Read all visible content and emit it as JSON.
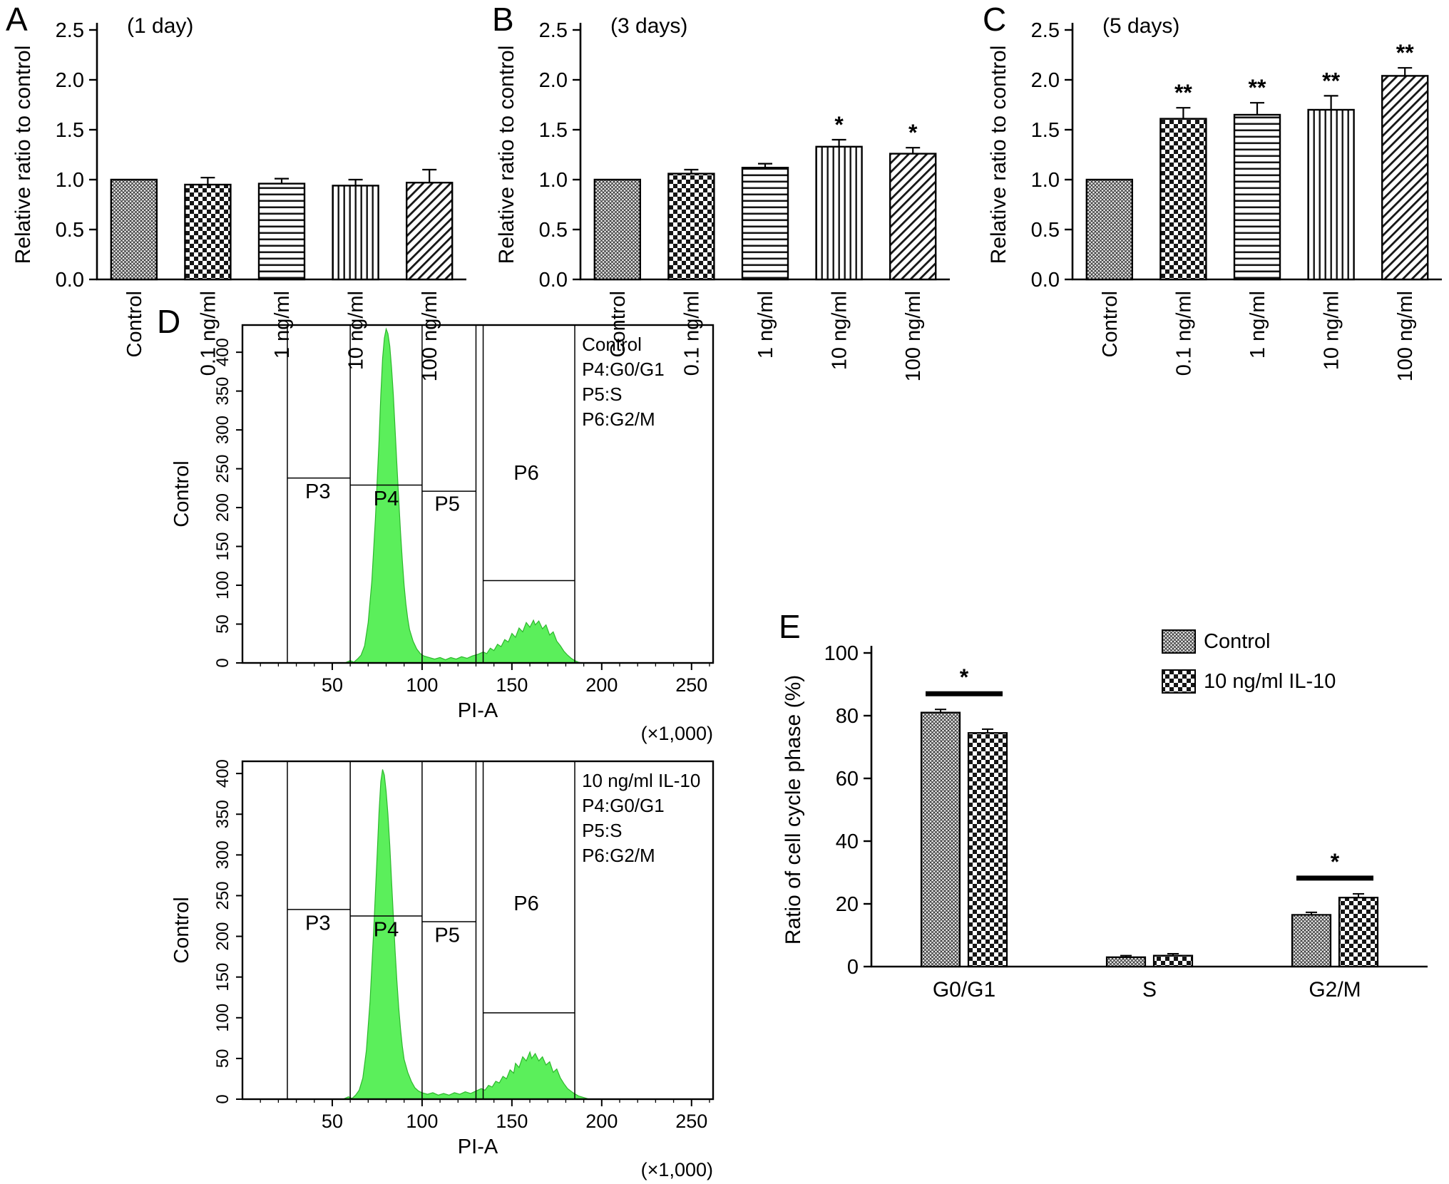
{
  "figure": {
    "background": "#ffffff",
    "histogram_fill": "#5BEF5B",
    "histogram_edge": "#2db82d",
    "panels": {
      "A": {
        "label": "A"
      },
      "B": {
        "label": "B"
      },
      "C": {
        "label": "C"
      },
      "D": {
        "label": "D"
      },
      "E": {
        "label": "E"
      }
    }
  },
  "chart_data": [
    {
      "id": "A",
      "type": "bar",
      "title": "(1 day)",
      "ylabel": "Relative ratio to control",
      "ylim": [
        0,
        2.5
      ],
      "yticks": [
        "0.0",
        "0.5",
        "1.0",
        "1.5",
        "2.0",
        "2.5"
      ],
      "categories": [
        "Control",
        "0.1 ng/ml",
        "1 ng/ml",
        "10 ng/ml",
        "100 ng/ml"
      ],
      "values": [
        1.0,
        0.95,
        0.96,
        0.94,
        0.97
      ],
      "errors": [
        0,
        0.07,
        0.05,
        0.06,
        0.13
      ],
      "sig": [
        "",
        "",
        "",
        "",
        ""
      ],
      "patterns": [
        "stipple",
        "checker",
        "hlines",
        "vlines",
        "diag"
      ]
    },
    {
      "id": "B",
      "type": "bar",
      "title": "(3 days)",
      "ylabel": "Relative ratio to control",
      "ylim": [
        0,
        2.5
      ],
      "yticks": [
        "0.0",
        "0.5",
        "1.0",
        "1.5",
        "2.0",
        "2.5"
      ],
      "categories": [
        "Control",
        "0.1 ng/ml",
        "1 ng/ml",
        "10 ng/ml",
        "100 ng/ml"
      ],
      "values": [
        1.0,
        1.06,
        1.12,
        1.33,
        1.26
      ],
      "errors": [
        0,
        0.04,
        0.04,
        0.07,
        0.06
      ],
      "sig": [
        "",
        "",
        "",
        "*",
        "*"
      ],
      "patterns": [
        "stipple",
        "checker",
        "hlines",
        "vlines",
        "diag"
      ]
    },
    {
      "id": "C",
      "type": "bar",
      "title": "(5 days)",
      "ylabel": "Relative ratio to control",
      "ylim": [
        0,
        2.5
      ],
      "yticks": [
        "0.0",
        "0.5",
        "1.0",
        "1.5",
        "2.0",
        "2.5"
      ],
      "categories": [
        "Control",
        "0.1 ng/ml",
        "1 ng/ml",
        "10 ng/ml",
        "100 ng/ml"
      ],
      "values": [
        1.0,
        1.61,
        1.65,
        1.7,
        2.04
      ],
      "errors": [
        0,
        0.11,
        0.12,
        0.14,
        0.08
      ],
      "sig": [
        "",
        "**",
        "**",
        "**",
        "**"
      ],
      "patterns": [
        "stipple",
        "checker",
        "hlines",
        "vlines",
        "diag"
      ]
    },
    {
      "id": "D1",
      "type": "flow-histogram",
      "legend_lines": [
        "Control",
        "P4:G0/G1",
        "P5:S",
        "P6:G2/M"
      ],
      "ylabel": "Control",
      "xlabel": "PI-A",
      "x_unit": "(×1,000)",
      "xlim": [
        0,
        262
      ],
      "xticks": [
        50,
        100,
        150,
        200,
        250
      ],
      "ylim": [
        0,
        435
      ],
      "yticks": [
        0,
        50,
        100,
        150,
        200,
        250,
        300,
        350,
        400
      ],
      "gate_lines_x": [
        25,
        60,
        100,
        130,
        134,
        185
      ],
      "gate_steps": [
        {
          "x1": 25,
          "x2": 60,
          "y": 238
        },
        {
          "x1": 60,
          "x2": 100,
          "y": 229
        },
        {
          "x1": 100,
          "x2": 130,
          "y": 221
        },
        {
          "x1": 134,
          "x2": 185,
          "y": 106
        }
      ],
      "gate_labels": [
        {
          "text": "P3",
          "x": 42,
          "y": 212
        },
        {
          "text": "P4",
          "x": 80,
          "y": 203
        },
        {
          "text": "P5",
          "x": 114,
          "y": 196
        },
        {
          "text": "P6",
          "x": 158,
          "y": 236
        }
      ],
      "hist": [
        [
          57,
          0
        ],
        [
          60,
          3
        ],
        [
          62,
          1
        ],
        [
          64,
          5
        ],
        [
          66,
          10
        ],
        [
          68,
          22
        ],
        [
          70,
          52
        ],
        [
          72,
          105
        ],
        [
          74,
          185
        ],
        [
          76,
          285
        ],
        [
          77,
          345
        ],
        [
          78,
          392
        ],
        [
          79,
          418
        ],
        [
          80,
          430
        ],
        [
          81,
          424
        ],
        [
          82,
          408
        ],
        [
          83,
          380
        ],
        [
          84,
          345
        ],
        [
          85,
          300
        ],
        [
          86,
          255
        ],
        [
          87,
          210
        ],
        [
          88,
          168
        ],
        [
          89,
          132
        ],
        [
          90,
          100
        ],
        [
          91,
          76
        ],
        [
          92,
          57
        ],
        [
          93,
          43
        ],
        [
          95,
          28
        ],
        [
          97,
          18
        ],
        [
          99,
          12
        ],
        [
          101,
          9
        ],
        [
          104,
          7
        ],
        [
          107,
          5
        ],
        [
          110,
          7
        ],
        [
          113,
          4
        ],
        [
          116,
          7
        ],
        [
          119,
          5
        ],
        [
          122,
          8
        ],
        [
          125,
          6
        ],
        [
          128,
          9
        ],
        [
          131,
          11
        ],
        [
          134,
          14
        ],
        [
          136,
          12
        ],
        [
          138,
          19
        ],
        [
          140,
          16
        ],
        [
          142,
          24
        ],
        [
          144,
          21
        ],
        [
          146,
          30
        ],
        [
          148,
          27
        ],
        [
          150,
          38
        ],
        [
          152,
          33
        ],
        [
          154,
          45
        ],
        [
          156,
          40
        ],
        [
          158,
          52
        ],
        [
          160,
          46
        ],
        [
          162,
          55
        ],
        [
          163,
          49
        ],
        [
          165,
          54
        ],
        [
          167,
          44
        ],
        [
          169,
          49
        ],
        [
          171,
          36
        ],
        [
          173,
          40
        ],
        [
          175,
          28
        ],
        [
          177,
          22
        ],
        [
          179,
          15
        ],
        [
          181,
          10
        ],
        [
          183,
          6
        ],
        [
          185,
          3
        ],
        [
          187,
          1
        ],
        [
          189,
          0
        ]
      ]
    },
    {
      "id": "D2",
      "type": "flow-histogram",
      "legend_lines": [
        "10 ng/ml IL-10",
        "P4:G0/G1",
        "P5:S",
        "P6:G2/M"
      ],
      "ylabel": "Control",
      "xlabel": "PI-A",
      "x_unit": "(×1,000)",
      "xlim": [
        0,
        262
      ],
      "xticks": [
        50,
        100,
        150,
        200,
        250
      ],
      "ylim": [
        0,
        415
      ],
      "yticks": [
        0,
        50,
        100,
        150,
        200,
        250,
        300,
        350,
        400
      ],
      "gate_lines_x": [
        25,
        60,
        100,
        130,
        134,
        185
      ],
      "gate_steps": [
        {
          "x1": 25,
          "x2": 60,
          "y": 233
        },
        {
          "x1": 60,
          "x2": 100,
          "y": 225
        },
        {
          "x1": 100,
          "x2": 130,
          "y": 218
        },
        {
          "x1": 134,
          "x2": 185,
          "y": 106
        }
      ],
      "gate_labels": [
        {
          "text": "P3",
          "x": 42,
          "y": 208
        },
        {
          "text": "P4",
          "x": 80,
          "y": 200
        },
        {
          "text": "P5",
          "x": 114,
          "y": 193
        },
        {
          "text": "P6",
          "x": 158,
          "y": 232
        }
      ],
      "hist": [
        [
          56,
          0
        ],
        [
          59,
          3
        ],
        [
          61,
          1
        ],
        [
          63,
          5
        ],
        [
          65,
          11
        ],
        [
          67,
          26
        ],
        [
          69,
          60
        ],
        [
          71,
          120
        ],
        [
          73,
          205
        ],
        [
          75,
          300
        ],
        [
          76,
          352
        ],
        [
          77,
          390
        ],
        [
          78,
          405
        ],
        [
          79,
          398
        ],
        [
          80,
          378
        ],
        [
          81,
          350
        ],
        [
          82,
          312
        ],
        [
          83,
          268
        ],
        [
          84,
          225
        ],
        [
          85,
          182
        ],
        [
          86,
          145
        ],
        [
          87,
          112
        ],
        [
          88,
          86
        ],
        [
          89,
          65
        ],
        [
          90,
          49
        ],
        [
          92,
          33
        ],
        [
          94,
          22
        ],
        [
          96,
          14
        ],
        [
          98,
          10
        ],
        [
          100,
          8
        ],
        [
          103,
          6
        ],
        [
          106,
          8
        ],
        [
          109,
          5
        ],
        [
          112,
          7
        ],
        [
          115,
          5
        ],
        [
          118,
          8
        ],
        [
          121,
          6
        ],
        [
          124,
          9
        ],
        [
          127,
          7
        ],
        [
          130,
          10
        ],
        [
          133,
          13
        ],
        [
          135,
          11
        ],
        [
          137,
          17
        ],
        [
          139,
          15
        ],
        [
          141,
          22
        ],
        [
          143,
          20
        ],
        [
          145,
          28
        ],
        [
          147,
          25
        ],
        [
          149,
          36
        ],
        [
          151,
          32
        ],
        [
          152,
          44
        ],
        [
          154,
          39
        ],
        [
          156,
          52
        ],
        [
          158,
          47
        ],
        [
          160,
          58
        ],
        [
          161,
          50
        ],
        [
          163,
          56
        ],
        [
          165,
          47
        ],
        [
          167,
          52
        ],
        [
          169,
          42
        ],
        [
          171,
          46
        ],
        [
          173,
          33
        ],
        [
          175,
          37
        ],
        [
          177,
          26
        ],
        [
          179,
          19
        ],
        [
          181,
          13
        ],
        [
          184,
          8
        ],
        [
          187,
          4
        ],
        [
          190,
          2
        ],
        [
          193,
          0
        ]
      ]
    },
    {
      "id": "E",
      "type": "grouped-bar",
      "ylabel": "Ratio of cell cycle phase (%)",
      "ylim": [
        0,
        100
      ],
      "yticks": [
        0,
        20,
        40,
        60,
        80,
        100
      ],
      "categories": [
        "G0/G1",
        "S",
        "G2/M"
      ],
      "series": [
        {
          "name": "Control",
          "pattern": "stipple",
          "values": [
            81,
            3,
            16.5
          ],
          "errors": [
            1,
            0.5,
            0.8
          ]
        },
        {
          "name": "10 ng/ml IL-10",
          "pattern": "checker",
          "values": [
            74.5,
            3.5,
            22
          ],
          "errors": [
            1.2,
            0.6,
            1.2
          ]
        }
      ],
      "sig_groups": [
        {
          "category_index": 0,
          "text": "*"
        },
        {
          "category_index": 2,
          "text": "*"
        }
      ]
    }
  ]
}
